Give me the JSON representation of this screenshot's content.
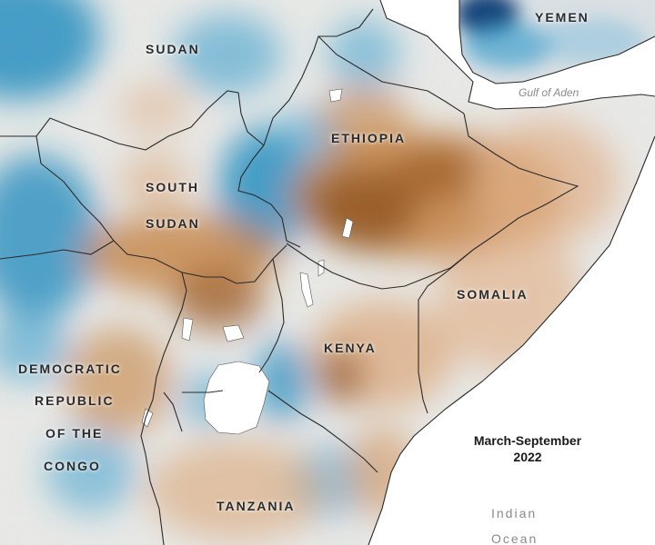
{
  "labels": {
    "sudan": "SUDAN",
    "yemen": "YEMEN",
    "ethiopia": "ETHIOPIA",
    "south_sudan_1": "SOUTH",
    "south_sudan_2": "SUDAN",
    "somalia": "SOMALIA",
    "kenya": "KENYA",
    "drc_1": "DEMOCRATIC",
    "drc_2": "REPUBLIC",
    "drc_3": "OF THE",
    "drc_4": "CONGO",
    "tanzania": "TANZANIA"
  },
  "water": {
    "gulf_of_aden": "Gulf of Aden",
    "indian_1": "Indian",
    "indian_2": "Ocean"
  },
  "period": {
    "line1": "March-September",
    "line2": "2022"
  },
  "colors": {
    "dry": "#a5601c",
    "wet": "#1f8fc4",
    "very_wet": "#0f3f7a",
    "neutral": "#eef2f2",
    "ocean": "#ffffff",
    "border": "#2a2a2a"
  }
}
